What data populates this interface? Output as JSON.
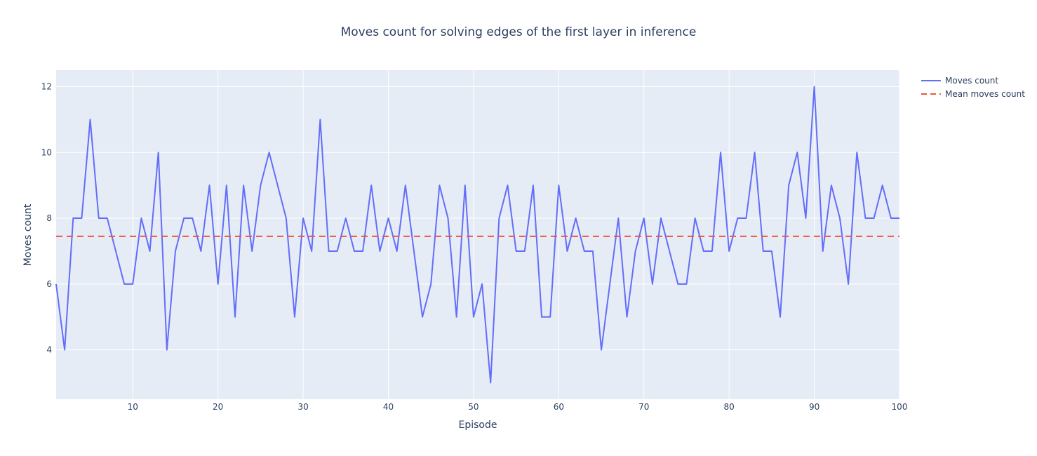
{
  "chart_data": {
    "type": "line",
    "title": "Moves count for solving edges of the first layer in inference",
    "xlabel": "Episode",
    "ylabel": "Moves count",
    "xlim": [
      1,
      100
    ],
    "ylim": [
      2.5,
      12.5
    ],
    "xticks": [
      10,
      20,
      30,
      40,
      50,
      60,
      70,
      80,
      90,
      100
    ],
    "yticks": [
      4,
      6,
      8,
      10,
      12
    ],
    "grid": true,
    "legend_position": "top-right",
    "series": [
      {
        "name": "Moves count",
        "color": "#636efa",
        "style": "solid",
        "x": [
          1,
          2,
          3,
          4,
          5,
          6,
          7,
          8,
          9,
          10,
          11,
          12,
          13,
          14,
          15,
          16,
          17,
          18,
          19,
          20,
          21,
          22,
          23,
          24,
          25,
          26,
          27,
          28,
          29,
          30,
          31,
          32,
          33,
          34,
          35,
          36,
          37,
          38,
          39,
          40,
          41,
          42,
          43,
          44,
          45,
          46,
          47,
          48,
          49,
          50,
          51,
          52,
          53,
          54,
          55,
          56,
          57,
          58,
          59,
          60,
          61,
          62,
          63,
          64,
          65,
          66,
          67,
          68,
          69,
          70,
          71,
          72,
          73,
          74,
          75,
          76,
          77,
          78,
          79,
          80,
          81,
          82,
          83,
          84,
          85,
          86,
          87,
          88,
          89,
          90,
          91,
          92,
          93,
          94,
          95,
          96,
          97,
          98,
          99,
          100
        ],
        "values": [
          6,
          4,
          8,
          8,
          11,
          8,
          8,
          7,
          6,
          6,
          8,
          7,
          10,
          4,
          7,
          8,
          8,
          7,
          9,
          6,
          9,
          5,
          9,
          7,
          9,
          10,
          9,
          8,
          5,
          8,
          7,
          11,
          7,
          7,
          8,
          7,
          7,
          9,
          7,
          8,
          7,
          9,
          7,
          5,
          6,
          9,
          8,
          5,
          9,
          5,
          6,
          3,
          8,
          9,
          7,
          7,
          9,
          5,
          5,
          9,
          7,
          8,
          7,
          7,
          4,
          6,
          8,
          5,
          7,
          8,
          6,
          8,
          7,
          6,
          6,
          8,
          7,
          7,
          10,
          7,
          8,
          8,
          10,
          7,
          7,
          5,
          9,
          10,
          8,
          12,
          7,
          9,
          8,
          6,
          10,
          8,
          8,
          9,
          8,
          8
        ]
      },
      {
        "name": "Mean moves count",
        "color": "#ef553b",
        "style": "dash",
        "x": [
          1,
          100
        ],
        "values": [
          7.45,
          7.45
        ]
      }
    ]
  }
}
